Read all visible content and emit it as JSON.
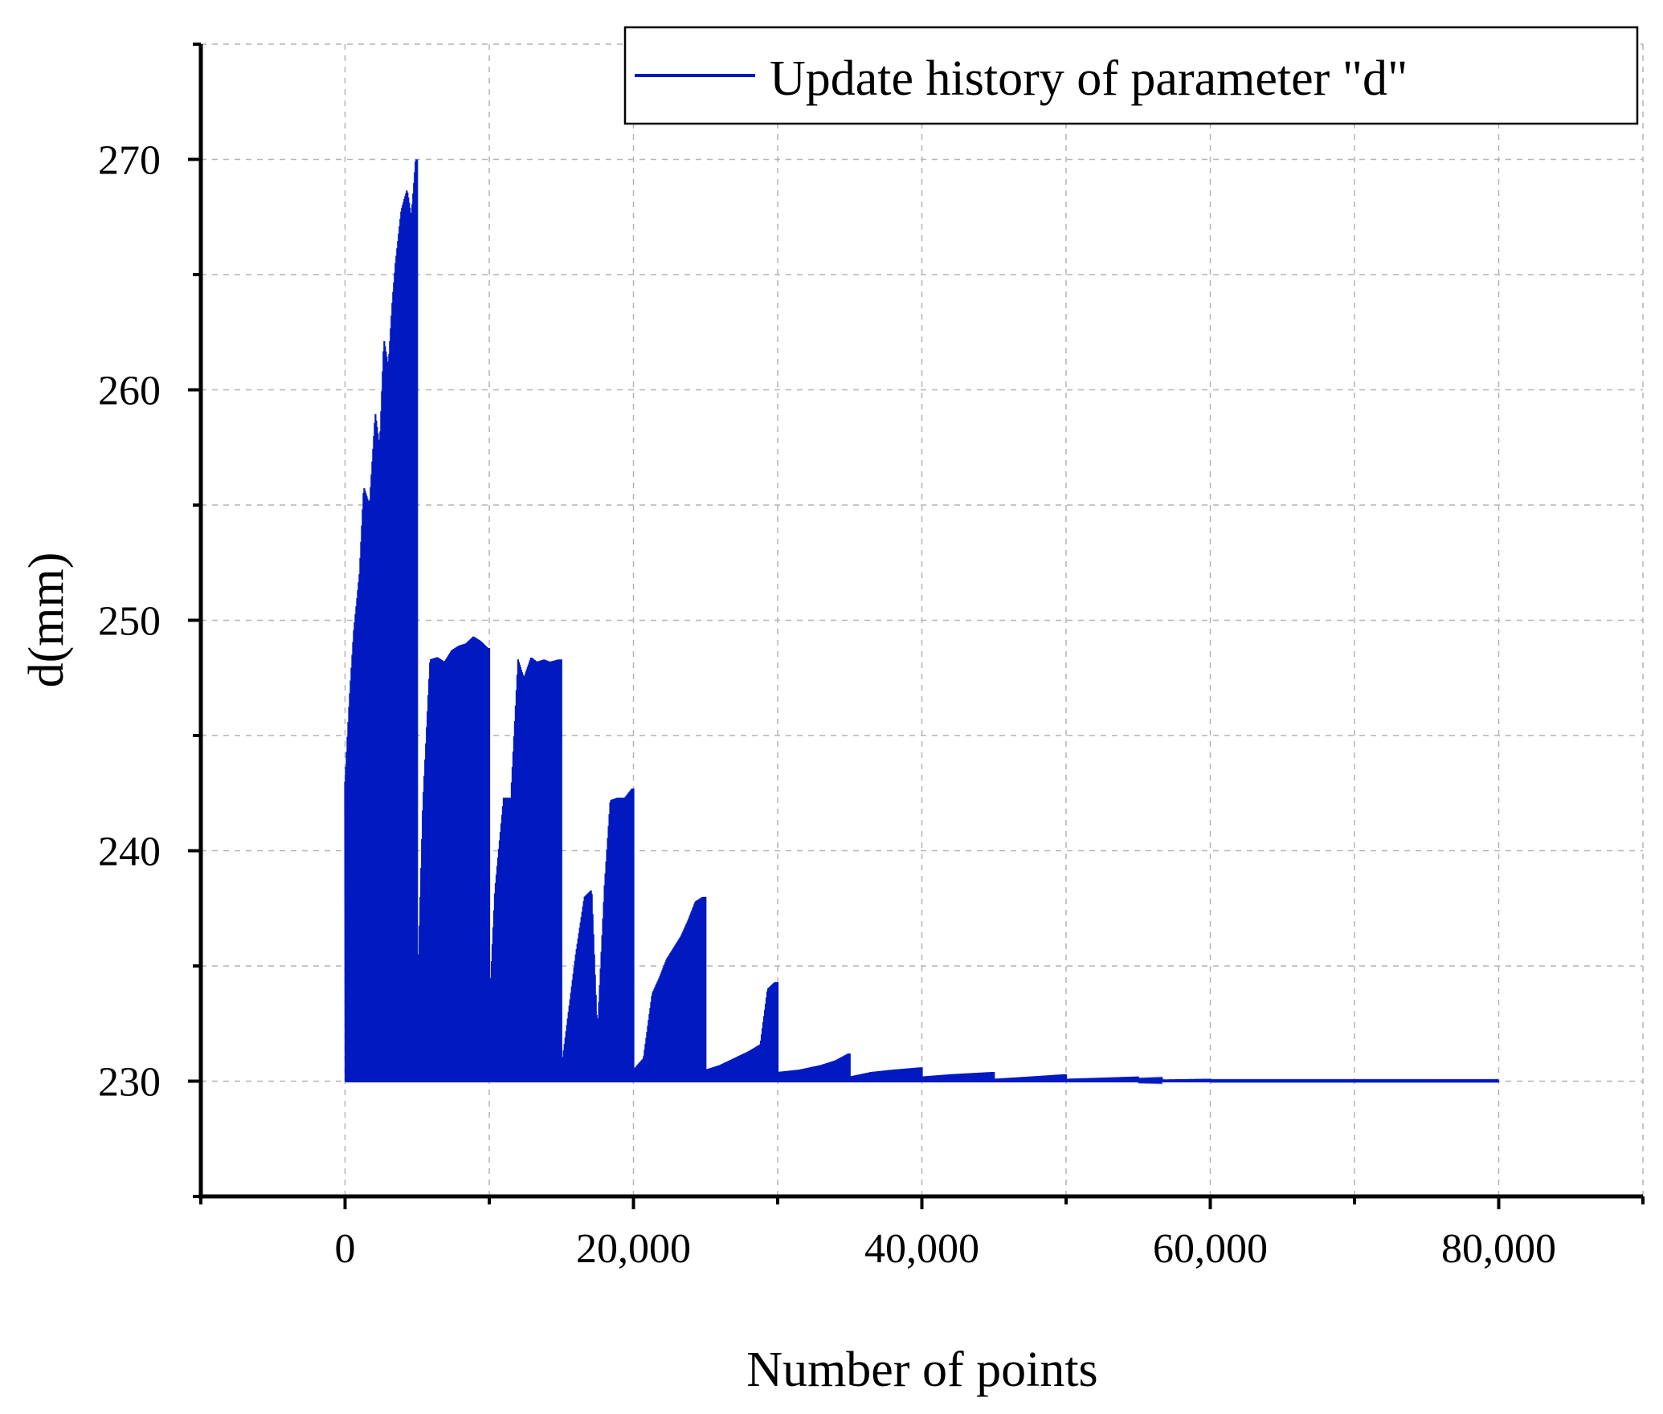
{
  "chart_data": {
    "type": "line",
    "title": "",
    "xlabel": "Number of points",
    "ylabel": "d(mm)",
    "xlim": [
      -10000,
      90000
    ],
    "ylim": [
      225,
      275
    ],
    "x_ticks": [
      0,
      20000,
      40000,
      60000,
      80000
    ],
    "x_tick_labels": [
      "0",
      "20,000",
      "40,000",
      "60,000",
      "80,000"
    ],
    "x_minor_ticks": [
      -10000,
      10000,
      30000,
      50000,
      70000,
      90000
    ],
    "y_ticks": [
      230,
      240,
      250,
      260,
      270
    ],
    "y_tick_labels": [
      "230",
      "240",
      "250",
      "260",
      "270"
    ],
    "y_minor_ticks": [
      225,
      235,
      245,
      255,
      265,
      275
    ],
    "grid": true,
    "legend_position": "top-right",
    "line_color": "#0019c1",
    "series": [
      {
        "name": "Update history of parameter \"d\"",
        "baseline": 230,
        "segments": [
          {
            "x_start": 0,
            "x_end": 5000,
            "min": 230,
            "peaks": [
              [
                0,
                243.0
              ],
              [
                300,
                246.5
              ],
              [
                600,
                249.5
              ],
              [
                1000,
                252.0
              ],
              [
                1300,
                255.8
              ],
              [
                1700,
                255.0
              ],
              [
                2100,
                259.0
              ],
              [
                2400,
                257.5
              ],
              [
                2700,
                262.2
              ],
              [
                3000,
                261.0
              ],
              [
                3300,
                264.0
              ],
              [
                3500,
                265.5
              ],
              [
                3900,
                267.8
              ],
              [
                4300,
                268.7
              ],
              [
                4600,
                267.5
              ],
              [
                4900,
                270.0
              ]
            ]
          },
          {
            "x_start": 5000,
            "x_end": 10000,
            "min": 230,
            "peaks": [
              [
                5000,
                233.0
              ],
              [
                5400,
                242.0
              ],
              [
                5900,
                248.3
              ],
              [
                6400,
                248.4
              ],
              [
                6900,
                248.2
              ],
              [
                7400,
                248.7
              ],
              [
                7900,
                248.9
              ],
              [
                8400,
                249.0
              ],
              [
                8900,
                249.3
              ],
              [
                9400,
                249.1
              ],
              [
                9900,
                248.8
              ]
            ]
          },
          {
            "x_start": 10000,
            "x_end": 15000,
            "min": 230,
            "peaks": [
              [
                10000,
                233.0
              ],
              [
                10400,
                238.3
              ],
              [
                11000,
                242.3
              ],
              [
                11500,
                242.3
              ],
              [
                12000,
                248.3
              ],
              [
                12400,
                247.5
              ],
              [
                12900,
                248.4
              ],
              [
                13300,
                248.2
              ],
              [
                13800,
                248.3
              ],
              [
                14200,
                248.2
              ],
              [
                14800,
                248.3
              ]
            ]
          },
          {
            "x_start": 15000,
            "x_end": 20000,
            "min": 230,
            "peaks": [
              [
                15000,
                230.5
              ],
              [
                15500,
                233.0
              ],
              [
                16000,
                235.5
              ],
              [
                16600,
                238.0
              ],
              [
                17100,
                238.3
              ],
              [
                17500,
                232.0
              ],
              [
                18000,
                238.5
              ],
              [
                18400,
                242.2
              ],
              [
                18900,
                242.3
              ],
              [
                19400,
                242.3
              ],
              [
                19900,
                242.7
              ]
            ]
          },
          {
            "x_start": 20000,
            "x_end": 25000,
            "min": 230,
            "peaks": [
              [
                20000,
                230.5
              ],
              [
                20700,
                231.0
              ],
              [
                21300,
                233.8
              ],
              [
                21800,
                234.5
              ],
              [
                22300,
                235.3
              ],
              [
                22800,
                235.8
              ],
              [
                23300,
                236.3
              ],
              [
                23800,
                237.0
              ],
              [
                24300,
                237.8
              ],
              [
                24800,
                238.0
              ]
            ]
          },
          {
            "x_start": 25000,
            "x_end": 30000,
            "min": 230,
            "peaks": [
              [
                25000,
                230.5
              ],
              [
                26000,
                230.7
              ],
              [
                27000,
                231.0
              ],
              [
                28000,
                231.3
              ],
              [
                28800,
                231.6
              ],
              [
                29300,
                234.0
              ],
              [
                29800,
                234.3
              ]
            ]
          },
          {
            "x_start": 30000,
            "x_end": 35000,
            "min": 230,
            "peaks": [
              [
                30000,
                230.4
              ],
              [
                31500,
                230.5
              ],
              [
                33000,
                230.7
              ],
              [
                34000,
                230.9
              ],
              [
                34900,
                231.2
              ]
            ]
          },
          {
            "x_start": 35000,
            "x_end": 40000,
            "min": 230,
            "peaks": [
              [
                35000,
                230.2
              ],
              [
                36500,
                230.4
              ],
              [
                38000,
                230.5
              ],
              [
                39900,
                230.6
              ]
            ]
          },
          {
            "x_start": 40000,
            "x_end": 45000,
            "min": 230,
            "peaks": [
              [
                40000,
                230.2
              ],
              [
                42000,
                230.3
              ],
              [
                44900,
                230.4
              ]
            ]
          },
          {
            "x_start": 45000,
            "x_end": 50000,
            "min": 230,
            "peaks": [
              [
                45000,
                230.1
              ],
              [
                47500,
                230.2
              ],
              [
                49900,
                230.3
              ]
            ]
          },
          {
            "x_start": 50000,
            "x_end": 55000,
            "min": 230,
            "peaks": [
              [
                50000,
                230.1
              ],
              [
                54900,
                230.2
              ]
            ]
          },
          {
            "x_start": 55000,
            "x_end": 60000,
            "min": 230,
            "peaks": [
              [
                55000,
                230.05
              ],
              [
                59900,
                230.1
              ]
            ]
          },
          {
            "x_start": 60000,
            "x_end": 80000,
            "min": 230,
            "peaks": [
              [
                60000,
                230.03
              ],
              [
                80000,
                230.03
              ]
            ]
          }
        ]
      }
    ]
  }
}
